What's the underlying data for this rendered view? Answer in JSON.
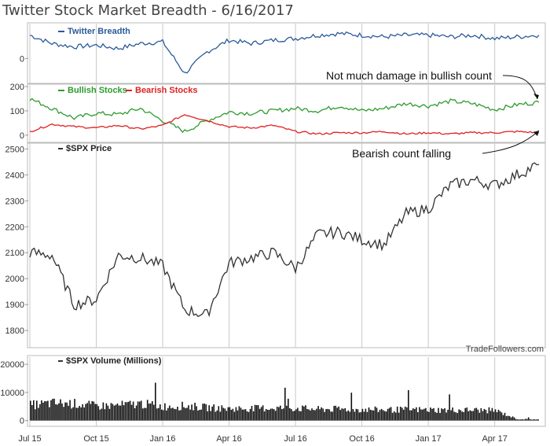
{
  "title": "Twitter Stock Market Breadth - 6/16/2017",
  "watermark": "TradeFollowers.com",
  "x_axis": {
    "ticks": [
      "Jul 15",
      "Oct 15",
      "Jan 16",
      "Apr 16",
      "Jul 16",
      "Oct 16",
      "Jan 17",
      "Apr 17"
    ]
  },
  "annotations": {
    "bullish_note": "Not much damage in bullish count",
    "bearish_note": "Bearish count falling"
  },
  "colors": {
    "breadth": "#2a5a9a",
    "bullish": "#2e9a2e",
    "bearish": "#e02020",
    "price": "#333333",
    "volume": "#111111",
    "grid": "#c8c8c8"
  },
  "chart_data": [
    {
      "type": "line",
      "title": "Twitter Breadth",
      "series": [
        {
          "name": "Twitter Breadth",
          "x": [
            "Jul 15",
            "Aug 15",
            "Sep 15",
            "Oct 15",
            "Nov 15",
            "Dec 15",
            "Jan 16",
            "Feb 16",
            "Mar 16",
            "Apr 16",
            "May 16",
            "Jun 16",
            "Jul 16",
            "Aug 16",
            "Sep 16",
            "Oct 16",
            "Nov 16",
            "Dec 16",
            "Jan 17",
            "Feb 17",
            "Mar 17",
            "Apr 17",
            "May 17",
            "Jun 17"
          ],
          "values": [
            70,
            45,
            35,
            40,
            30,
            45,
            50,
            -45,
            20,
            55,
            45,
            55,
            60,
            70,
            75,
            70,
            65,
            70,
            70,
            65,
            70,
            60,
            65,
            70
          ]
        }
      ],
      "y_ticks": [
        0
      ],
      "ylim": [
        -70,
        100
      ]
    },
    {
      "type": "line",
      "title": "Bullish Stocks / Bearish Stocks",
      "series": [
        {
          "name": "Bullish Stocks",
          "x": [
            "Jul 15",
            "Aug 15",
            "Sep 15",
            "Oct 15",
            "Nov 15",
            "Dec 15",
            "Jan 16",
            "Feb 16",
            "Mar 16",
            "Apr 16",
            "May 16",
            "Jun 16",
            "Jul 16",
            "Aug 16",
            "Sep 16",
            "Oct 16",
            "Nov 16",
            "Dec 16",
            "Jan 17",
            "Feb 17",
            "Mar 17",
            "Apr 17",
            "May 17",
            "Jun 17"
          ],
          "values": [
            150,
            110,
            70,
            90,
            85,
            110,
            60,
            15,
            60,
            95,
            90,
            100,
            110,
            100,
            120,
            100,
            110,
            130,
            120,
            140,
            130,
            105,
            125,
            135
          ]
        },
        {
          "name": "Bearish Stocks",
          "x": [
            "Jul 15",
            "Aug 15",
            "Sep 15",
            "Oct 15",
            "Nov 15",
            "Dec 15",
            "Jan 16",
            "Feb 16",
            "Mar 16",
            "Apr 16",
            "May 16",
            "Jun 16",
            "Jul 16",
            "Aug 16",
            "Sep 16",
            "Oct 16",
            "Nov 16",
            "Dec 16",
            "Jan 17",
            "Feb 17",
            "Mar 17",
            "Apr 17",
            "May 17",
            "Jun 17"
          ],
          "values": [
            15,
            45,
            35,
            30,
            40,
            25,
            40,
            85,
            60,
            35,
            30,
            40,
            15,
            5,
            10,
            10,
            15,
            5,
            10,
            5,
            10,
            10,
            15,
            10
          ]
        }
      ],
      "y_ticks": [
        0,
        100,
        200
      ],
      "ylim": [
        -20,
        200
      ]
    },
    {
      "type": "line",
      "title": "$SPX Price",
      "series": [
        {
          "name": "$SPX Price",
          "x": [
            "Jul 15",
            "Aug 15",
            "Sep 15",
            "Oct 15",
            "Nov 15",
            "Dec 15",
            "Jan 16",
            "Feb 16",
            "Mar 16",
            "Apr 16",
            "May 16",
            "Jun 16",
            "Jul 16",
            "Aug 16",
            "Sep 16",
            "Oct 16",
            "Nov 16",
            "Dec 16",
            "Jan 17",
            "Feb 17",
            "Mar 17",
            "Apr 17",
            "May 17",
            "Jun 17"
          ],
          "values": [
            2100,
            2090,
            1900,
            1920,
            2090,
            2080,
            2050,
            1880,
            1860,
            2060,
            2080,
            2100,
            2040,
            2170,
            2180,
            2150,
            2130,
            2250,
            2270,
            2360,
            2380,
            2360,
            2400,
            2440
          ]
        }
      ],
      "y_ticks": [
        1800,
        1900,
        2000,
        2100,
        2200,
        2300,
        2400,
        2500
      ],
      "ylim": [
        1740,
        2510
      ]
    },
    {
      "type": "bar",
      "title": "$SPX Volume (Millions)",
      "series": [
        {
          "name": "$SPX Volume (Millions)",
          "x": [
            "Jul 15",
            "Aug 15",
            "Sep 15",
            "Oct 15",
            "Nov 15",
            "Dec 15",
            "Jan 16",
            "Feb 16",
            "Mar 16",
            "Apr 16",
            "May 16",
            "Jun 16",
            "Jul 16",
            "Aug 16",
            "Sep 16",
            "Oct 16",
            "Nov 16",
            "Dec 16",
            "Jan 17",
            "Feb 17",
            "Mar 17",
            "Apr 17",
            "May 17",
            "Jun 17"
          ],
          "values": [
            5500,
            6200,
            6000,
            5200,
            5400,
            6000,
            5000,
            5200,
            4600,
            4200,
            4300,
            4500,
            4400,
            4000,
            4100,
            3900,
            3800,
            3900,
            3800,
            3700,
            3700,
            3600,
            500,
            400
          ]
        }
      ],
      "y_ticks": [
        0,
        10000,
        20000
      ],
      "ylim": [
        -1500,
        22000
      ]
    }
  ]
}
